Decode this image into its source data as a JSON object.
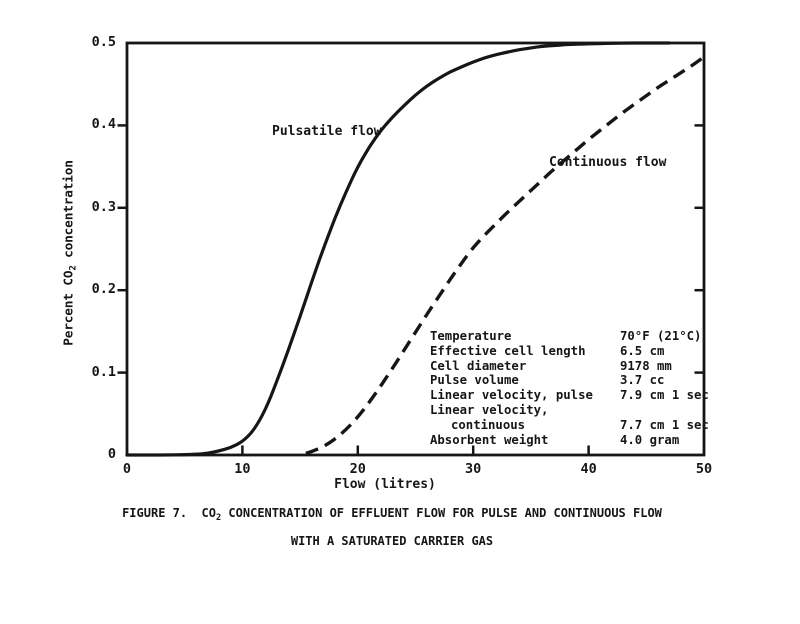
{
  "figure": {
    "background": "#ffffff",
    "ink": "#161616"
  },
  "caption": {
    "line1_prefix": "FIGURE 7.  CO",
    "line1_sub": "2",
    "line1_suffix": " CONCENTRATION OF EFFLUENT FLOW FOR PULSE AND CONTINUOUS FLOW",
    "line2": "WITH A SATURATED CARRIER GAS"
  },
  "chart_data": {
    "type": "line",
    "xlabel": "Flow (litres)",
    "ylabel_prefix": "Percent CO",
    "ylabel_sub": "2",
    "ylabel_suffix": " concentration",
    "xlim": [
      0,
      50
    ],
    "ylim": [
      0,
      0.5
    ],
    "x_ticks": [
      0,
      10,
      20,
      30,
      40,
      50
    ],
    "x_tick_labels": [
      "0",
      "10",
      "20",
      "30",
      "40",
      "50"
    ],
    "y_ticks": [
      0,
      0.1,
      0.2,
      0.3,
      0.4,
      0.5
    ],
    "y_tick_labels": [
      "0",
      "0.1",
      "0.2",
      "0.3",
      "0.4",
      "0.5"
    ],
    "grid": false,
    "legend_position": "inline-labels",
    "series": [
      {
        "name": "Pulsatile flow",
        "style": "solid",
        "points": [
          [
            0,
            0
          ],
          [
            4,
            0
          ],
          [
            6,
            0.001
          ],
          [
            7,
            0.002
          ],
          [
            8,
            0.005
          ],
          [
            9,
            0.009
          ],
          [
            10,
            0.016
          ],
          [
            11,
            0.03
          ],
          [
            12,
            0.055
          ],
          [
            13,
            0.09
          ],
          [
            14,
            0.128
          ],
          [
            15,
            0.168
          ],
          [
            16,
            0.21
          ],
          [
            17,
            0.25
          ],
          [
            18,
            0.287
          ],
          [
            19,
            0.32
          ],
          [
            20,
            0.35
          ],
          [
            21,
            0.374
          ],
          [
            22,
            0.394
          ],
          [
            23,
            0.41
          ],
          [
            24,
            0.424
          ],
          [
            25,
            0.437
          ],
          [
            26,
            0.448
          ],
          [
            27,
            0.457
          ],
          [
            28,
            0.465
          ],
          [
            29,
            0.471
          ],
          [
            30,
            0.477
          ],
          [
            31,
            0.482
          ],
          [
            32,
            0.486
          ],
          [
            33,
            0.489
          ],
          [
            34,
            0.492
          ],
          [
            35,
            0.494
          ],
          [
            36,
            0.496
          ],
          [
            37,
            0.497
          ],
          [
            38,
            0.498
          ],
          [
            40,
            0.499
          ],
          [
            43,
            0.5
          ],
          [
            47,
            0.5
          ]
        ]
      },
      {
        "name": "Continuous flow",
        "style": "dashed",
        "points": [
          [
            15.5,
            0.002
          ],
          [
            16,
            0.004
          ],
          [
            17,
            0.01
          ],
          [
            18,
            0.019
          ],
          [
            19,
            0.031
          ],
          [
            20,
            0.046
          ],
          [
            21,
            0.064
          ],
          [
            22,
            0.084
          ],
          [
            23,
            0.105
          ],
          [
            24,
            0.127
          ],
          [
            25,
            0.149
          ],
          [
            26,
            0.171
          ],
          [
            27,
            0.192
          ],
          [
            28,
            0.213
          ],
          [
            29,
            0.233
          ],
          [
            30,
            0.252
          ],
          [
            31,
            0.267
          ],
          [
            32,
            0.281
          ],
          [
            33,
            0.295
          ],
          [
            34,
            0.308
          ],
          [
            35,
            0.321
          ],
          [
            36,
            0.334
          ],
          [
            37,
            0.347
          ],
          [
            38,
            0.359
          ],
          [
            39,
            0.371
          ],
          [
            40,
            0.383
          ],
          [
            41,
            0.394
          ],
          [
            42,
            0.405
          ],
          [
            43,
            0.416
          ],
          [
            44,
            0.426
          ],
          [
            45,
            0.436
          ],
          [
            46,
            0.446
          ],
          [
            47,
            0.455
          ],
          [
            48,
            0.464
          ],
          [
            49,
            0.473
          ],
          [
            50,
            0.483
          ]
        ]
      }
    ],
    "annotations": {
      "rows": [
        {
          "label": "Temperature",
          "value": "70°F (21°C)",
          "indent": false
        },
        {
          "label": "Effective cell length",
          "value": "6.5 cm",
          "indent": false
        },
        {
          "label": "Cell diameter",
          "value": "9178 mm",
          "indent": false
        },
        {
          "label": "Pulse volume",
          "value": "3.7 cc",
          "indent": false
        },
        {
          "label": "Linear velocity, pulse",
          "value": "7.9 cm 1 sec",
          "indent": false
        },
        {
          "label": "Linear velocity,",
          "value": "",
          "indent": false
        },
        {
          "label": "continuous",
          "value": "7.7 cm 1 sec",
          "indent": true
        },
        {
          "label": "Absorbent weight",
          "value": "4.0 gram",
          "indent": false
        }
      ]
    }
  }
}
